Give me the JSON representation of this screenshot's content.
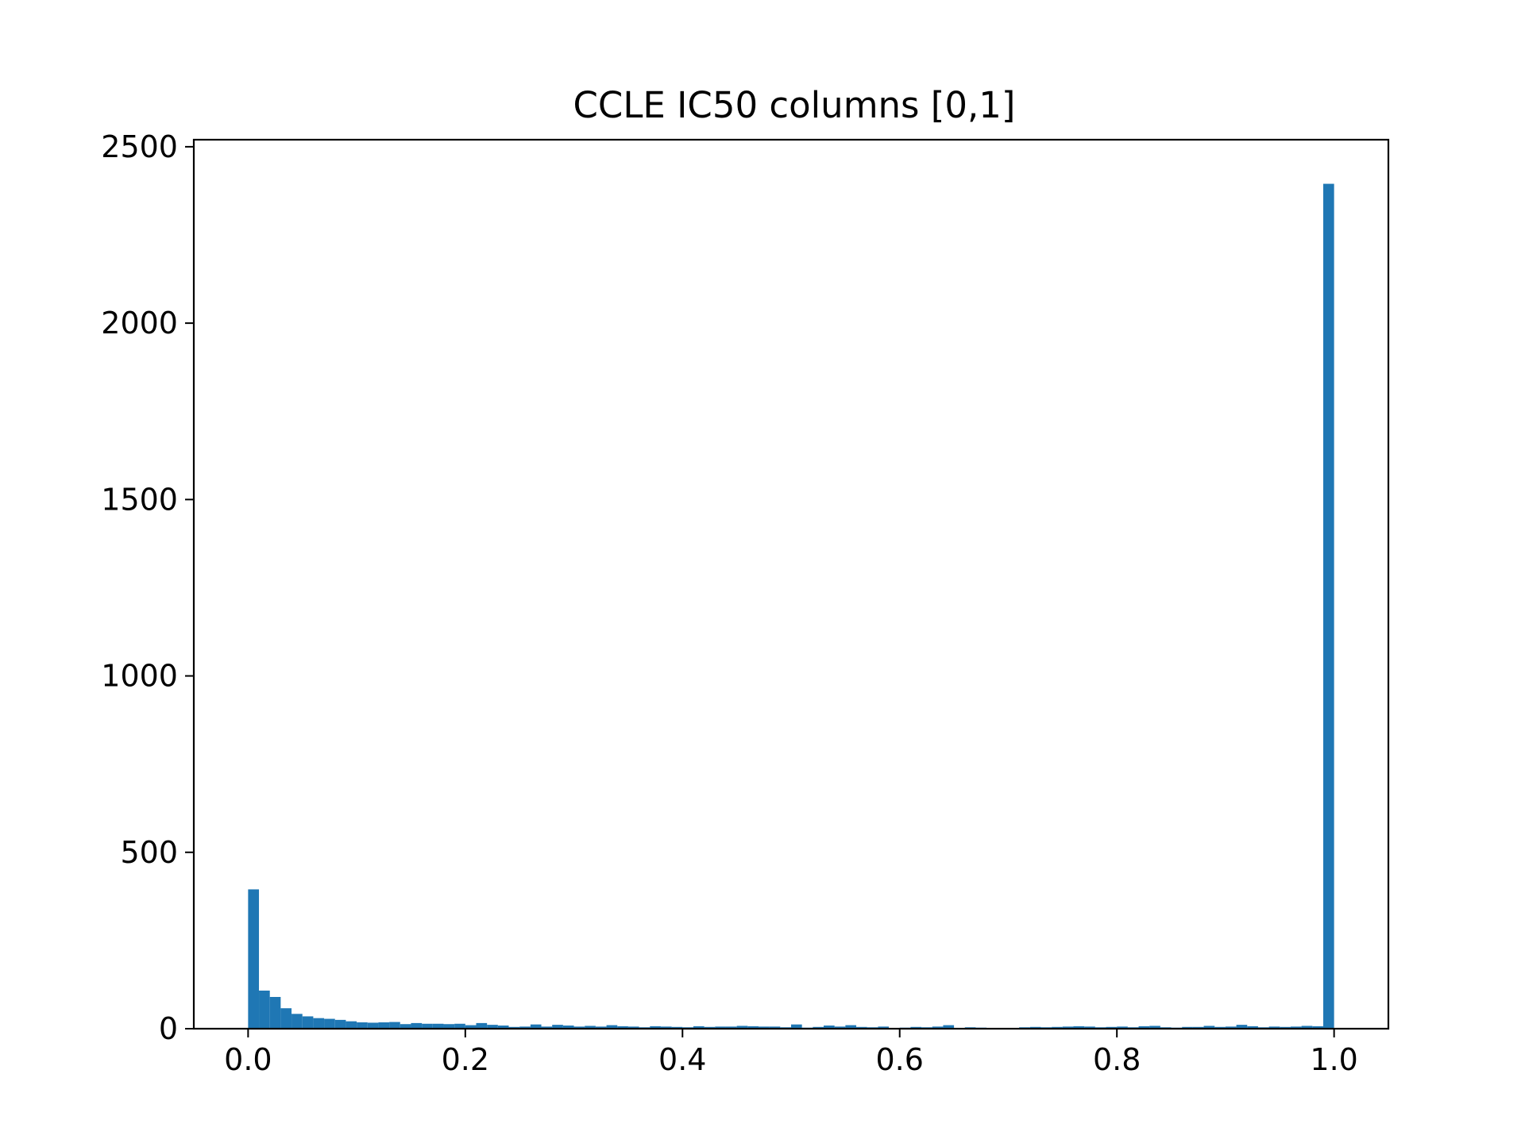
{
  "chart_data": {
    "type": "bar",
    "title": "CCLE IC50 columns [0,1]",
    "xlabel": "",
    "ylabel": "",
    "xlim": [
      -0.05,
      1.05
    ],
    "ylim": [
      0,
      2520
    ],
    "x_ticks": [
      "0.0",
      "0.2",
      "0.4",
      "0.6",
      "0.8",
      "1.0"
    ],
    "y_ticks": [
      "0",
      "500",
      "1000",
      "1500",
      "2000",
      "2500"
    ],
    "grid": false,
    "bar_color": "#1f77b4",
    "bin_width": 0.01,
    "bin_start": 0.0,
    "values": [
      395,
      108,
      90,
      58,
      42,
      35,
      30,
      28,
      25,
      21,
      18,
      17,
      18,
      19,
      13,
      16,
      14,
      14,
      13,
      14,
      10,
      16,
      11,
      9,
      5,
      6,
      12,
      6,
      11,
      9,
      6,
      8,
      6,
      10,
      7,
      6,
      4,
      7,
      6,
      5,
      4,
      7,
      5,
      6,
      6,
      8,
      7,
      6,
      6,
      4,
      12,
      3,
      5,
      9,
      6,
      10,
      5,
      4,
      6,
      2,
      3,
      5,
      4,
      6,
      10,
      2,
      4,
      3,
      2,
      2,
      2,
      4,
      5,
      4,
      5,
      6,
      7,
      6,
      4,
      5,
      6,
      4,
      7,
      8,
      4,
      3,
      5,
      5,
      8,
      5,
      6,
      11,
      7,
      4,
      6,
      5,
      6,
      8,
      7,
      2395
    ]
  }
}
